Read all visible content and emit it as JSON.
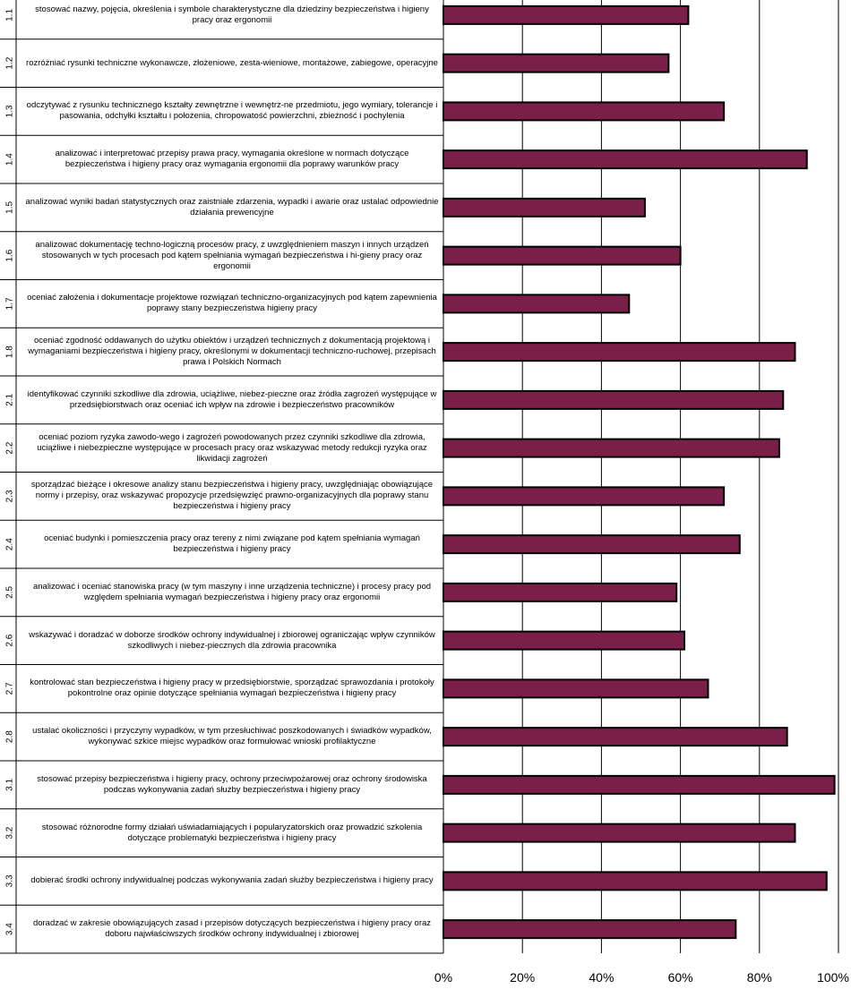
{
  "chart_data": {
    "type": "bar",
    "orientation": "horizontal",
    "bar_color": "#7a1e4a",
    "bar_edge_color": "#000000",
    "grid": true,
    "xlim": [
      0,
      100
    ],
    "x_ticks": [
      "0%",
      "20%",
      "40%",
      "60%",
      "80%",
      "100%"
    ],
    "categories": [
      {
        "code": "1.1",
        "label": "stosować nazwy, pojęcia, określenia i symbole charakterystyczne dla dziedziny bezpieczeństwa i higieny pracy oraz ergonomii",
        "value": 62
      },
      {
        "code": "1.2",
        "label": "rozróżniać rysunki techniczne wykonawcze, złożeniowe, zesta-wieniowe, montażowe, zabiegowe, operacyjne",
        "value": 57
      },
      {
        "code": "1.3",
        "label": "odczytywać z rysunku technicznego kształty zewnętrzne i wewnętrz-ne przedmiotu, jego wymiary, tolerancje i pasowania, odchyłki kształtu i położenia, chropowatość powierzchni, zbieżność i pochylenia",
        "value": 71
      },
      {
        "code": "1.4",
        "label": "analizować i interpretować przepisy prawa pracy, wymagania określone w normach dotyczące bezpieczeństwa i higieny pracy oraz wymagania ergonomii dla poprawy warunków pracy",
        "value": 92
      },
      {
        "code": "1.5",
        "label": "analizować wyniki badań statystycznych oraz zaistniałe zdarzenia, wypadki i awarie oraz ustalać odpowiednie działania prewencyjne",
        "value": 51
      },
      {
        "code": "1.6",
        "label": "analizować dokumentację techno-logiczną procesów pracy, z uwzględnieniem maszyn i innych urządzeń stosowanych w tych procesach pod kątem spełniania wymagań bezpieczeństwa i hi-gieny pracy oraz ergonomii",
        "value": 60
      },
      {
        "code": "1.7",
        "label": "oceniać założenia i dokumentacje projektowe rozwiązań techniczno-organizacyjnych pod kątem zapewnienia poprawy stany bezpieczeństwa higieny pracy",
        "value": 47
      },
      {
        "code": "1.8",
        "label": "oceniać zgodność oddawanych do użytku obiektów i urządzeń technicznych z dokumentacją projektową i wymaganiami bezpieczeństwa i higieny pracy, określonymi w dokumentacji techniczno-ruchowej, przepisach prawa i Polskich Normach",
        "value": 89
      },
      {
        "code": "2.1",
        "label": "identyfikować czynniki szkodliwe dla zdrowia, uciążliwe, niebez-pieczne oraz źródła zagrożeń występujące w przedsiębiorstwach oraz oceniać ich wpływ na zdrowie i bezpieczeństwo pracowników",
        "value": 86
      },
      {
        "code": "2.2",
        "label": "oceniać poziom ryzyka zawodo-wego i zagrożeń powodowanych przez czynniki szkodliwe dla zdrowia, uciążliwe i niebezpieczne występujące w procesach pracy oraz wskazywać metody redukcji ryzyka oraz likwidacji zagrożeń",
        "value": 85
      },
      {
        "code": "2.3",
        "label": "sporządzać bieżące i okresowe analizy stanu bezpieczeństwa i higieny pracy, uwzględniając obowiązujące normy i przepisy, oraz wskazywać propozycje przedsięwzięć prawno-organizacyjnych dla poprawy stanu bezpieczeństwa i higieny pracy",
        "value": 71
      },
      {
        "code": "2.4",
        "label": "oceniać budynki i pomieszczenia pracy oraz tereny z nimi związane pod kątem spełniania wymagań bezpieczeństwa i higieny pracy",
        "value": 75
      },
      {
        "code": "2.5",
        "label": "analizować i oceniać stanowiska pracy (w tym maszyny i inne urządzenia techniczne) i procesy pracy pod względem spełniania wymagań bezpieczeństwa i higieny pracy oraz ergonomii",
        "value": 59
      },
      {
        "code": "2.6",
        "label": "wskazywać i doradzać w doborze środków ochrony indywidualnej i zbiorowej ograniczając wpływ czynników szkodliwych i niebez-piecznych dla zdrowia pracownika",
        "value": 61
      },
      {
        "code": "2.7",
        "label": "kontrolować stan bezpieczeństwa i higieny pracy w przedsiębiorstwie, sporządzać sprawozdania i protokoły pokontrolne oraz opinie dotyczące spełniania wymagań bezpieczeństwa i higieny pracy",
        "value": 67
      },
      {
        "code": "2.8",
        "label": "ustalać okoliczności i przyczyny wypadków, w tym przesłuchiwać poszkodowanych i świadków wypadków, wykonywać szkice miejsc wypadków oraz formułować wnioski profilaktyczne",
        "value": 87
      },
      {
        "code": "3.1",
        "label": "stosować przepisy bezpieczeństwa i higieny pracy, ochrony przeciwpożarowej oraz ochrony środowiska podczas wykonywania zadań służby bezpieczeństwa i higieny pracy",
        "value": 99
      },
      {
        "code": "3.2",
        "label": "stosować różnorodne formy działań uświadamiających i popularyzatorskich oraz prowadzić szkolenia dotyczące problematyki bezpieczeństwa i higieny pracy",
        "value": 89
      },
      {
        "code": "3.3",
        "label": "dobierać środki ochrony indywidualnej podczas wykonywania zadań służby bezpieczeństwa i higieny pracy",
        "value": 97
      },
      {
        "code": "3.4",
        "label": "doradzać w zakresie obowiązujących zasad i przepisów dotyczących bezpieczeństwa i higieny pracy oraz doboru najwłaściwszych środków ochrony indywidualnej i zbiorowej",
        "value": 74
      }
    ]
  }
}
